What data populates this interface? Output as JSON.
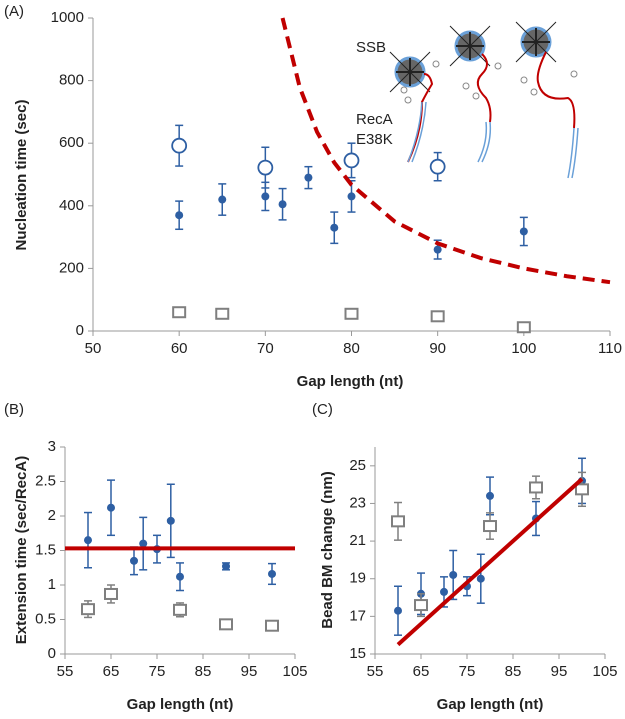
{
  "chart_data": [
    {
      "type": "scatter",
      "label": "(A)",
      "xlabel": "Gap length (nt)",
      "ylabel": "Nucleation time (sec)",
      "xlim": [
        50,
        110
      ],
      "ylim": [
        0,
        1000
      ],
      "xticks": [
        50,
        60,
        70,
        80,
        90,
        100,
        110
      ],
      "yticks": [
        0,
        200,
        400,
        600,
        800,
        1000
      ],
      "annotations": [
        "SSB",
        "RecA",
        "E38K"
      ],
      "series": [
        {
          "marker": "filled-circle",
          "color": "#2e5fa3",
          "x": [
            60,
            65,
            70,
            72,
            75,
            78,
            80,
            90,
            100
          ],
          "values": [
            370,
            420,
            430,
            405,
            490,
            330,
            430,
            260,
            318
          ],
          "errors": [
            45,
            50,
            45,
            50,
            35,
            50,
            50,
            30,
            45
          ]
        },
        {
          "marker": "open-circle",
          "color": "#2e5fa3",
          "x": [
            60,
            70,
            80,
            90
          ],
          "values": [
            592,
            522,
            545,
            525
          ],
          "errors": [
            65,
            65,
            55,
            45
          ]
        },
        {
          "marker": "open-square",
          "color": "#7f7f7f",
          "x": [
            60,
            65,
            80,
            90,
            100
          ],
          "values": [
            60,
            55,
            55,
            47,
            12
          ],
          "errors": [
            12,
            10,
            10,
            12,
            8
          ]
        },
        {
          "marker": "dashed-line",
          "color": "#c00000",
          "x": [
            72,
            74,
            76,
            78,
            80,
            85,
            90,
            95,
            100,
            105,
            110
          ],
          "values": [
            1000,
            778,
            636,
            538,
            467,
            350,
            280,
            233,
            200,
            175,
            156
          ]
        }
      ]
    },
    {
      "type": "scatter",
      "label": "(B)",
      "xlabel": "Gap length (nt)",
      "ylabel": "Extension time (sec/RecA)",
      "xlim": [
        55,
        105
      ],
      "ylim": [
        0,
        3
      ],
      "xticks": [
        55,
        65,
        75,
        85,
        95,
        105
      ],
      "yticks": [
        0,
        0.5,
        1,
        1.5,
        2,
        2.5,
        3
      ],
      "series": [
        {
          "marker": "filled-circle",
          "color": "#2e5fa3",
          "x": [
            60,
            65,
            70,
            72,
            75,
            78,
            80,
            90,
            100
          ],
          "values": [
            1.65,
            2.12,
            1.35,
            1.6,
            1.52,
            1.93,
            1.12,
            1.27,
            1.16
          ],
          "errors": [
            0.4,
            0.4,
            0.2,
            0.38,
            0.2,
            0.53,
            0.2,
            0.05,
            0.15
          ]
        },
        {
          "marker": "open-square",
          "color": "#7f7f7f",
          "x": [
            60,
            65,
            80,
            90,
            100
          ],
          "values": [
            0.65,
            0.87,
            0.64,
            0.43,
            0.41
          ],
          "errors": [
            0.12,
            0.13,
            0.1,
            0.05,
            0.05
          ]
        },
        {
          "marker": "solid-line",
          "color": "#c00000",
          "x": [
            55,
            105
          ],
          "values": [
            1.53,
            1.53
          ]
        }
      ]
    },
    {
      "type": "scatter",
      "label": "(C)",
      "xlabel": "Gap length (nt)",
      "ylabel": "Bead BM change (nm)",
      "xlim": [
        55,
        105
      ],
      "ylim": [
        15,
        26
      ],
      "xticks": [
        55,
        65,
        75,
        85,
        95,
        105
      ],
      "yticks": [
        15,
        17,
        19,
        21,
        23,
        25
      ],
      "series": [
        {
          "marker": "filled-circle",
          "color": "#2e5fa3",
          "x": [
            60,
            65,
            70,
            72,
            75,
            78,
            80,
            90,
            100
          ],
          "values": [
            17.3,
            18.2,
            18.3,
            19.2,
            18.6,
            19.0,
            23.4,
            22.2,
            24.2
          ],
          "errors": [
            1.3,
            1.1,
            0.8,
            1.3,
            0.5,
            1.3,
            1.0,
            0.9,
            1.2
          ]
        },
        {
          "marker": "open-square",
          "color": "#7f7f7f",
          "x": [
            60,
            65,
            80,
            90,
            100
          ],
          "values": [
            22.05,
            17.6,
            21.8,
            23.85,
            23.75
          ],
          "errors": [
            1.0,
            0.6,
            0.7,
            0.6,
            0.9
          ]
        },
        {
          "marker": "solid-line",
          "color": "#c00000",
          "x": [
            60,
            100
          ],
          "values": [
            15.5,
            24.3
          ]
        }
      ]
    }
  ]
}
